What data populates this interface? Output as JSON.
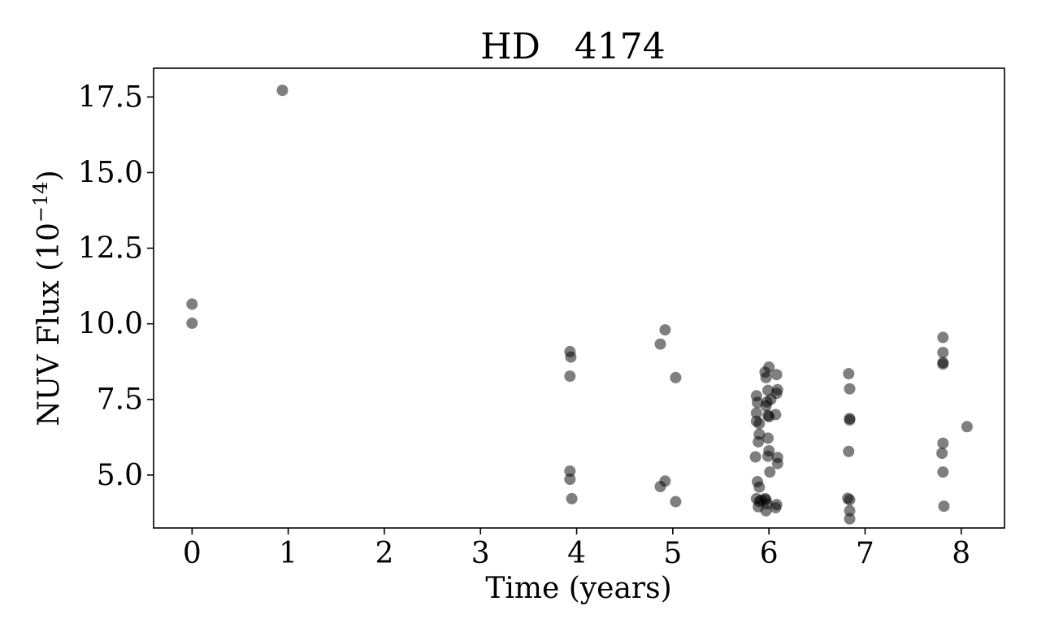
{
  "chart_data": {
    "type": "scatter",
    "title": "HD   4174",
    "xlabel": "Time (years)",
    "ylabel": "NUV Flux (10",
    "ylabel_exponent": "−14",
    "ylabel_suffix": ")",
    "xlim": [
      -0.4,
      8.45
    ],
    "ylim": [
      3.25,
      18.45
    ],
    "xticks": [
      0,
      1,
      2,
      3,
      4,
      5,
      6,
      7,
      8
    ],
    "yticks": [
      5.0,
      7.5,
      10.0,
      12.5,
      15.0,
      17.5
    ],
    "xtick_labels": [
      "0",
      "1",
      "2",
      "3",
      "4",
      "5",
      "6",
      "7",
      "8"
    ],
    "ytick_labels": [
      "5.0",
      "7.5",
      "10.0",
      "12.5",
      "15.0",
      "17.5"
    ],
    "marker_color": "#000000",
    "marker_opacity": 0.5,
    "grid": false,
    "points": [
      [
        0.0,
        10.65
      ],
      [
        0.0,
        10.02
      ],
      [
        0.94,
        17.72
      ],
      [
        3.93,
        9.08
      ],
      [
        3.94,
        8.9
      ],
      [
        3.93,
        8.27
      ],
      [
        3.93,
        5.13
      ],
      [
        3.93,
        4.86
      ],
      [
        3.95,
        4.22
      ],
      [
        4.87,
        9.33
      ],
      [
        4.92,
        9.8
      ],
      [
        5.03,
        8.22
      ],
      [
        4.92,
        4.8
      ],
      [
        4.87,
        4.62
      ],
      [
        5.03,
        4.12
      ],
      [
        5.87,
        7.62
      ],
      [
        5.88,
        7.4
      ],
      [
        5.87,
        7.05
      ],
      [
        5.87,
        6.78
      ],
      [
        5.9,
        6.7
      ],
      [
        5.9,
        6.35
      ],
      [
        5.89,
        6.1
      ],
      [
        5.86,
        5.6
      ],
      [
        5.88,
        4.78
      ],
      [
        5.9,
        4.6
      ],
      [
        5.87,
        4.22
      ],
      [
        5.9,
        4.12
      ],
      [
        5.89,
        3.95
      ],
      [
        5.92,
        4.17
      ],
      [
        5.96,
        8.4
      ],
      [
        5.97,
        8.22
      ],
      [
        5.99,
        7.8
      ],
      [
        5.98,
        7.42
      ],
      [
        5.97,
        7.28
      ],
      [
        5.99,
        6.97
      ],
      [
        6.0,
        6.93
      ],
      [
        5.99,
        6.22
      ],
      [
        6.0,
        5.8
      ],
      [
        5.99,
        5.62
      ],
      [
        6.01,
        5.1
      ],
      [
        5.96,
        4.22
      ],
      [
        5.97,
        4.18
      ],
      [
        5.98,
        4.05
      ],
      [
        5.97,
        3.82
      ],
      [
        6.0,
        8.57
      ],
      [
        6.02,
        7.5
      ],
      [
        6.08,
        8.32
      ],
      [
        6.09,
        7.82
      ],
      [
        6.08,
        7.7
      ],
      [
        6.07,
        7.0
      ],
      [
        6.09,
        5.58
      ],
      [
        6.09,
        5.38
      ],
      [
        6.08,
        4.02
      ],
      [
        6.07,
        3.92
      ],
      [
        6.83,
        8.35
      ],
      [
        6.84,
        7.85
      ],
      [
        6.84,
        6.87
      ],
      [
        6.84,
        6.82
      ],
      [
        6.83,
        5.78
      ],
      [
        6.82,
        4.23
      ],
      [
        6.84,
        4.18
      ],
      [
        6.84,
        3.82
      ],
      [
        6.84,
        3.55
      ],
      [
        7.81,
        9.55
      ],
      [
        7.81,
        9.05
      ],
      [
        7.81,
        8.72
      ],
      [
        7.81,
        8.67
      ],
      [
        7.81,
        6.05
      ],
      [
        7.8,
        5.72
      ],
      [
        7.81,
        5.1
      ],
      [
        7.82,
        3.97
      ],
      [
        8.06,
        6.6
      ]
    ]
  }
}
